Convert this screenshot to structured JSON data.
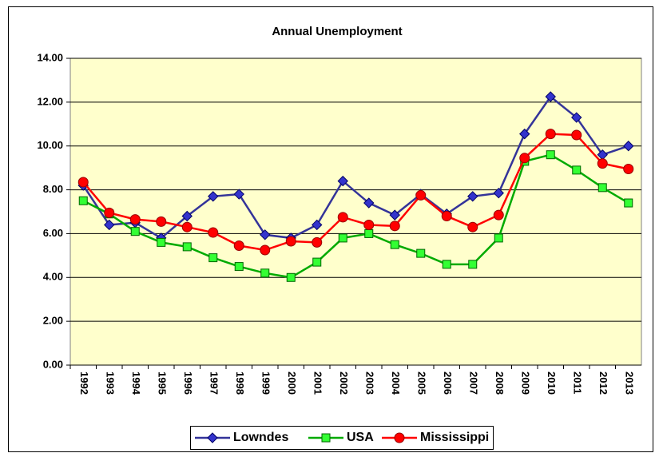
{
  "chart_data": {
    "type": "line",
    "title": "Annual Unemployment",
    "categories": [
      "1992",
      "1993",
      "1994",
      "1995",
      "1996",
      "1997",
      "1998",
      "1999",
      "2000",
      "2001",
      "2002",
      "2003",
      "2004",
      "2005",
      "2006",
      "2007",
      "2008",
      "2009",
      "2010",
      "2011",
      "2012",
      "2013"
    ],
    "series": [
      {
        "name": "Lowndes",
        "color": "#3333cc",
        "marker": "diamond",
        "values": [
          8.2,
          6.4,
          6.5,
          5.8,
          6.8,
          7.7,
          7.8,
          5.95,
          5.8,
          6.4,
          8.4,
          7.4,
          6.85,
          7.8,
          6.9,
          7.7,
          7.85,
          10.55,
          12.25,
          11.3,
          9.6,
          10.0
        ]
      },
      {
        "name": "USA",
        "color": "#00aa00",
        "marker": "square",
        "values": [
          7.5,
          6.9,
          6.1,
          5.6,
          5.4,
          4.9,
          4.5,
          4.2,
          4.0,
          4.7,
          5.8,
          6.0,
          5.5,
          5.1,
          4.6,
          4.6,
          5.8,
          9.3,
          9.6,
          8.9,
          8.1,
          7.4
        ]
      },
      {
        "name": "Mississippi",
        "color": "#ff0000",
        "marker": "circle",
        "values": [
          8.35,
          6.95,
          6.65,
          6.55,
          6.3,
          6.05,
          5.45,
          5.25,
          5.65,
          5.6,
          6.75,
          6.4,
          6.35,
          7.75,
          6.8,
          6.3,
          6.85,
          9.45,
          10.55,
          10.5,
          9.2,
          8.95
        ]
      }
    ],
    "ylim": [
      0,
      14
    ],
    "yticks": [
      {
        "value": 0,
        "label": "0.00"
      },
      {
        "value": 2,
        "label": "2.00"
      },
      {
        "value": 4,
        "label": "4.00"
      },
      {
        "value": 6,
        "label": "6.00"
      },
      {
        "value": 8,
        "label": "8.00"
      },
      {
        "value": 10,
        "label": "10.00"
      },
      {
        "value": 12,
        "label": "12.00"
      },
      {
        "value": 14,
        "label": "14.00"
      }
    ],
    "grid": true,
    "legend": "bottom"
  }
}
